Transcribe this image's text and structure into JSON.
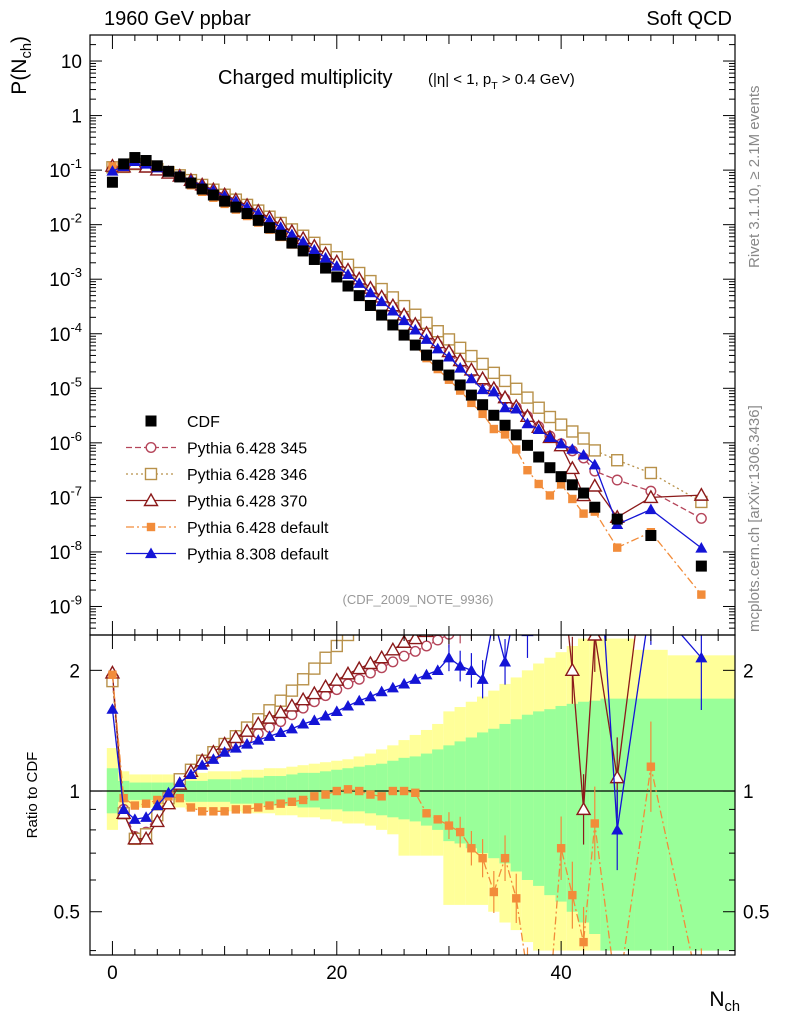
{
  "header": {
    "left": "1960 GeV ppbar",
    "right": "Soft QCD",
    "side_top": "Rivet 3.1.10, ≥ 2.1M events",
    "side_bottom": "mcplots.cern.ch [arXiv:1306.3436]"
  },
  "chart_data": {
    "type": "scatter",
    "title": "Charged multiplicity",
    "title_cuts": "(|η| < 1, p_T > 0.4 GeV)",
    "reference_label": "(CDF_2009_NOTE_9936)",
    "xlabel": "N_ch",
    "ylabel": "P(N_ch)",
    "ratio_ylabel": "Ratio to CDF",
    "xlim": [
      -2,
      55.5
    ],
    "ylim": [
      3e-10,
      30
    ],
    "yscale": "log",
    "ratio_ylim": [
      0.39,
      2.45
    ],
    "ratio_yscale": "log",
    "x_ticks": [
      "0",
      "20",
      "40"
    ],
    "y_ticks": [
      "10^{-9}",
      "10^{-8}",
      "10^{-7}",
      "10^{-6}",
      "10^{-5}",
      "10^{-4}",
      "10^{-3}",
      "10^{-2}",
      "10^{-1}",
      "1",
      "10"
    ],
    "ratio_ticks": [
      "0.5",
      "1",
      "2"
    ],
    "legend_position": "lower-left",
    "colors": {
      "cdf": "#000000",
      "p345": "#b5455a",
      "p346": "#b8914a",
      "p370": "#8b1a1a",
      "p6def": "#f28c3a",
      "p8def": "#1414d6",
      "band_yellow": "#ffff99",
      "band_green": "#99ff99"
    },
    "reference": {
      "name": "CDF",
      "x": [
        0,
        1,
        2,
        3,
        4,
        5,
        6,
        7,
        8,
        9,
        10,
        11,
        12,
        13,
        14,
        15,
        16,
        17,
        18,
        19,
        20,
        21,
        22,
        23,
        24,
        25,
        26,
        27,
        28,
        29,
        30,
        31,
        32,
        33,
        34,
        35,
        36,
        37,
        38,
        39,
        40,
        41,
        42,
        43,
        45,
        48,
        52.5
      ],
      "y": [
        0.06,
        0.13,
        0.17,
        0.15,
        0.12,
        0.095,
        0.075,
        0.058,
        0.045,
        0.035,
        0.027,
        0.021,
        0.016,
        0.012,
        0.0088,
        0.0064,
        0.0046,
        0.0033,
        0.0023,
        0.0016,
        0.0011,
        0.00075,
        0.0005,
        0.00033,
        0.00022,
        0.000145,
        9.45e-05,
        6.2e-05,
        4.06e-05,
        2.65e-05,
        1.75e-05,
        1.15e-05,
        7.5e-06,
        5e-06,
        3.2e-06,
        2.1e-06,
        1.4e-06,
        9e-07,
        5.5e-07,
        3.5e-07,
        2.4e-07,
        1.7e-07,
        1.2e-07,
        6.6e-08,
        4e-08,
        2e-08,
        5.5e-09
      ],
      "band_x": [
        -0.5,
        0.5,
        1.5,
        2.5,
        3.5,
        4.5,
        5.5,
        6.5,
        7.5,
        8.5,
        9.5,
        10.5,
        11.5,
        12.5,
        13.5,
        14.5,
        15.5,
        16.5,
        17.5,
        18.5,
        19.5,
        20.5,
        21.5,
        22.5,
        23.5,
        24.5,
        25.5,
        26.5,
        27.5,
        28.5,
        29.5,
        30.5,
        31.5,
        32.5,
        33.5,
        34.5,
        35.5,
        36.5,
        37.5,
        38.5,
        39.5,
        40.5,
        41.5,
        42.5,
        43.5,
        46.5,
        49.5,
        55.5
      ],
      "band_yellow": [
        [
          0.8,
          1.28
        ],
        [
          0.9,
          1.12
        ],
        [
          0.91,
          1.1
        ],
        [
          0.91,
          1.1
        ],
        [
          0.91,
          1.1
        ],
        [
          0.91,
          1.1
        ],
        [
          0.91,
          1.1
        ],
        [
          0.9,
          1.11
        ],
        [
          0.9,
          1.11
        ],
        [
          0.89,
          1.12
        ],
        [
          0.89,
          1.12
        ],
        [
          0.89,
          1.12
        ],
        [
          0.88,
          1.13
        ],
        [
          0.88,
          1.13
        ],
        [
          0.88,
          1.14
        ],
        [
          0.87,
          1.14
        ],
        [
          0.87,
          1.15
        ],
        [
          0.86,
          1.16
        ],
        [
          0.86,
          1.17
        ],
        [
          0.85,
          1.18
        ],
        [
          0.84,
          1.19
        ],
        [
          0.83,
          1.2
        ],
        [
          0.83,
          1.22
        ],
        [
          0.82,
          1.24
        ],
        [
          0.8,
          1.27
        ],
        [
          0.78,
          1.3
        ],
        [
          0.69,
          1.34
        ],
        [
          0.69,
          1.38
        ],
        [
          0.69,
          1.42
        ],
        [
          0.69,
          1.47
        ],
        [
          0.52,
          1.58
        ],
        [
          0.52,
          1.62
        ],
        [
          0.52,
          1.67
        ],
        [
          0.52,
          1.72
        ],
        [
          0.5,
          1.78
        ],
        [
          0.47,
          1.85
        ],
        [
          0.45,
          1.92
        ],
        [
          0.42,
          2.0
        ],
        [
          0.4,
          2.08
        ],
        [
          0.4,
          2.15
        ],
        [
          0.4,
          2.22
        ],
        [
          0.4,
          2.3
        ],
        [
          0.4,
          2.4
        ],
        [
          0.4,
          2.4
        ],
        [
          0.4,
          2.4
        ],
        [
          0.4,
          2.25
        ],
        [
          0.4,
          2.18
        ]
      ],
      "band_green": [
        [
          0.88,
          1.14
        ],
        [
          0.94,
          1.06
        ],
        [
          0.95,
          1.05
        ],
        [
          0.95,
          1.05
        ],
        [
          0.95,
          1.05
        ],
        [
          0.95,
          1.05
        ],
        [
          0.95,
          1.05
        ],
        [
          0.94,
          1.06
        ],
        [
          0.94,
          1.06
        ],
        [
          0.94,
          1.07
        ],
        [
          0.94,
          1.07
        ],
        [
          0.93,
          1.07
        ],
        [
          0.93,
          1.08
        ],
        [
          0.93,
          1.08
        ],
        [
          0.92,
          1.09
        ],
        [
          0.92,
          1.09
        ],
        [
          0.92,
          1.1
        ],
        [
          0.91,
          1.11
        ],
        [
          0.91,
          1.11
        ],
        [
          0.9,
          1.12
        ],
        [
          0.9,
          1.13
        ],
        [
          0.89,
          1.14
        ],
        [
          0.89,
          1.15
        ],
        [
          0.88,
          1.16
        ],
        [
          0.87,
          1.17
        ],
        [
          0.86,
          1.19
        ],
        [
          0.85,
          1.21
        ],
        [
          0.84,
          1.22
        ],
        [
          0.82,
          1.24
        ],
        [
          0.8,
          1.27
        ],
        [
          0.75,
          1.3
        ],
        [
          0.74,
          1.33
        ],
        [
          0.72,
          1.36
        ],
        [
          0.7,
          1.4
        ],
        [
          0.68,
          1.43
        ],
        [
          0.66,
          1.47
        ],
        [
          0.63,
          1.51
        ],
        [
          0.6,
          1.55
        ],
        [
          0.58,
          1.58
        ],
        [
          0.55,
          1.6
        ],
        [
          0.53,
          1.63
        ],
        [
          0.5,
          1.65
        ],
        [
          0.47,
          1.67
        ],
        [
          0.44,
          1.68
        ],
        [
          0.4,
          1.7
        ],
        [
          0.4,
          1.7
        ],
        [
          0.4,
          1.7
        ]
      ]
    },
    "series": [
      {
        "name": "Pythia 6.428 345",
        "key": "p345",
        "marker": "circle-open",
        "dash": "6,3",
        "x": [
          0,
          1,
          2,
          3,
          4,
          5,
          6,
          7,
          8,
          9,
          10,
          11,
          12,
          13,
          14,
          15,
          16,
          17,
          18,
          19,
          20,
          21,
          22,
          23,
          24,
          25,
          26,
          27,
          28,
          29,
          30,
          31,
          32,
          33,
          34,
          35,
          36,
          37,
          38,
          39,
          40,
          41,
          42,
          43,
          45,
          48,
          52.5
        ],
        "ratio": [
          1.9,
          0.9,
          0.77,
          0.79,
          0.88,
          0.96,
          1.07,
          1.12,
          1.18,
          1.22,
          1.27,
          1.31,
          1.35,
          1.39,
          1.44,
          1.49,
          1.55,
          1.61,
          1.67,
          1.73,
          1.79,
          1.85,
          1.9,
          1.97,
          2.03,
          2.1,
          2.17,
          2.23,
          2.3,
          2.38,
          2.46,
          2.55,
          2.64,
          2.75,
          2.9,
          3.05,
          3.2,
          3.4,
          3.6,
          3.8,
          4.0,
          4.2,
          4.4,
          4.6,
          5.2,
          6.5,
          7.5
        ]
      },
      {
        "name": "Pythia 6.428 346",
        "key": "p346",
        "marker": "square-open",
        "dash": "2,3",
        "x": [
          0,
          1,
          2,
          3,
          4,
          5,
          6,
          7,
          8,
          9,
          10,
          11,
          12,
          13,
          14,
          15,
          16,
          17,
          18,
          19,
          20,
          21,
          22,
          23,
          24,
          25,
          26,
          27,
          28,
          29,
          30,
          31,
          32,
          33,
          34,
          35,
          36,
          37,
          38,
          39,
          40,
          41,
          42,
          43,
          45,
          48,
          52.5
        ],
        "ratio": [
          1.88,
          0.88,
          0.76,
          0.78,
          0.87,
          0.96,
          1.07,
          1.13,
          1.19,
          1.25,
          1.31,
          1.37,
          1.44,
          1.51,
          1.59,
          1.68,
          1.78,
          1.9,
          2.02,
          2.15,
          2.3,
          2.45,
          2.6,
          2.8,
          3.0,
          3.2,
          3.4,
          3.6,
          3.9,
          4.2,
          4.5,
          4.8,
          5.2,
          5.6,
          6.0,
          6.5,
          7.0,
          7.5,
          8.0,
          8.5,
          9.0,
          9.5,
          10.0,
          11.0,
          12.0,
          14.0,
          15.0
        ]
      },
      {
        "name": "Pythia 6.428 370",
        "key": "p370",
        "marker": "triangle-open",
        "dash": "",
        "x": [
          0,
          1,
          2,
          3,
          4,
          5,
          6,
          7,
          8,
          9,
          10,
          11,
          12,
          13,
          14,
          15,
          16,
          17,
          18,
          19,
          20,
          21,
          22,
          23,
          24,
          25,
          26,
          27,
          28,
          29,
          30,
          31,
          32,
          33,
          34,
          35,
          36,
          37,
          38,
          39,
          40,
          41,
          42,
          43,
          45,
          48,
          52.5
        ],
        "ratio": [
          1.97,
          0.88,
          0.76,
          0.76,
          0.84,
          0.93,
          1.04,
          1.12,
          1.19,
          1.25,
          1.31,
          1.36,
          1.41,
          1.47,
          1.52,
          1.57,
          1.63,
          1.69,
          1.75,
          1.82,
          1.89,
          1.96,
          2.02,
          2.08,
          2.15,
          2.25,
          2.35,
          2.4,
          2.5,
          2.6,
          2.7,
          2.8,
          2.9,
          3.0,
          3.1,
          3.2,
          3.3,
          3.4,
          3.5,
          3.6,
          3.7,
          2.0,
          0.9,
          2.45,
          1.08,
          5.0,
          20.0
        ]
      },
      {
        "name": "Pythia 6.428 default",
        "key": "p6def",
        "marker": "square-filled",
        "dash": "8,3,2,3",
        "x": [
          0,
          1,
          2,
          3,
          4,
          5,
          6,
          7,
          8,
          9,
          10,
          11,
          12,
          13,
          14,
          15,
          16,
          17,
          18,
          19,
          20,
          21,
          22,
          23,
          24,
          25,
          26,
          27,
          28,
          29,
          30,
          31,
          32,
          33,
          34,
          35,
          36,
          37,
          38,
          39,
          40,
          41,
          42,
          43,
          45,
          48,
          52.5
        ],
        "ratio": [
          1.95,
          0.96,
          0.92,
          0.93,
          0.95,
          0.97,
          0.96,
          0.91,
          0.89,
          0.89,
          0.89,
          0.9,
          0.9,
          0.91,
          0.92,
          0.93,
          0.94,
          0.95,
          0.97,
          0.98,
          1.0,
          1.01,
          1.0,
          0.98,
          0.97,
          1.0,
          1.0,
          0.99,
          0.88,
          0.85,
          0.82,
          0.79,
          0.72,
          0.68,
          0.56,
          0.68,
          0.54,
          0.35,
          0.32,
          0.31,
          0.72,
          0.55,
          0.42,
          0.83,
          0.3,
          1.15,
          0.3
        ]
      },
      {
        "name": "Pythia 8.308 default",
        "key": "p8def",
        "marker": "triangle-filled",
        "dash": "",
        "x": [
          0,
          1,
          2,
          3,
          4,
          5,
          6,
          7,
          8,
          9,
          10,
          11,
          12,
          13,
          14,
          15,
          16,
          17,
          18,
          19,
          20,
          21,
          22,
          23,
          24,
          25,
          26,
          27,
          28,
          29,
          30,
          31,
          32,
          33,
          34,
          35,
          36,
          37,
          38,
          39,
          40,
          41,
          42,
          43,
          45,
          48,
          52.5
        ],
        "ratio": [
          1.6,
          0.9,
          0.85,
          0.86,
          0.92,
          0.99,
          1.05,
          1.1,
          1.16,
          1.2,
          1.25,
          1.28,
          1.31,
          1.34,
          1.37,
          1.4,
          1.43,
          1.47,
          1.5,
          1.54,
          1.58,
          1.63,
          1.68,
          1.72,
          1.77,
          1.81,
          1.85,
          1.9,
          1.95,
          2.0,
          2.15,
          2.05,
          2.0,
          1.9,
          2.7,
          2.1,
          3.0,
          2.5,
          3.2,
          3.6,
          4.0,
          4.5,
          5.0,
          6.0,
          0.8,
          3.0,
          2.15
        ]
      }
    ]
  }
}
